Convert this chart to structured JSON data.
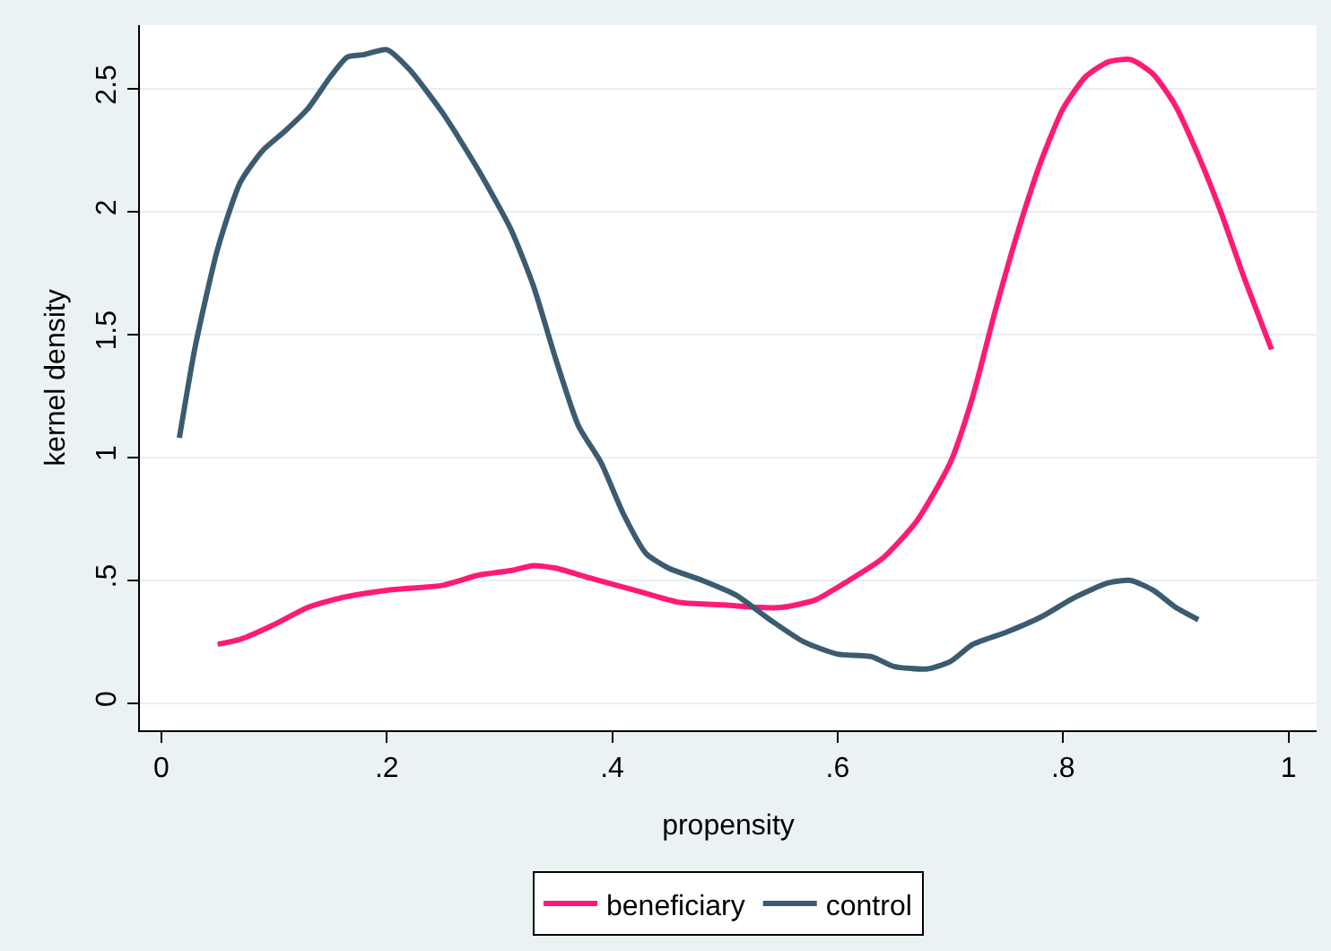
{
  "chart_data": {
    "type": "line",
    "xlabel": "propensity",
    "ylabel": "kernel density",
    "xlim": [
      -0.019,
      1.025
    ],
    "ylim": [
      -0.11,
      2.76
    ],
    "xticks": [
      0,
      {
        "value": 0.2,
        "label": ".2"
      },
      {
        "value": 0.4,
        "label": ".4"
      },
      {
        "value": 0.6,
        "label": ".6"
      },
      {
        "value": 0.8,
        "label": ".8"
      },
      1
    ],
    "yticks": [
      0,
      {
        "value": 0.5,
        "label": ".5"
      },
      1,
      1.5,
      2,
      2.5
    ],
    "grid": "y",
    "legend": "bottom",
    "line_style": "solid",
    "series": [
      {
        "name": "beneficiary",
        "color": "#ff1a75",
        "x": [
          0.05,
          0.07,
          0.1,
          0.13,
          0.16,
          0.2,
          0.25,
          0.28,
          0.31,
          0.33,
          0.35,
          0.38,
          0.42,
          0.46,
          0.5,
          0.53,
          0.55,
          0.58,
          0.61,
          0.64,
          0.67,
          0.7,
          0.72,
          0.74,
          0.76,
          0.78,
          0.8,
          0.82,
          0.84,
          0.86,
          0.88,
          0.9,
          0.92,
          0.94,
          0.96,
          0.985
        ],
        "values": [
          0.24,
          0.26,
          0.32,
          0.39,
          0.43,
          0.46,
          0.48,
          0.52,
          0.54,
          0.56,
          0.55,
          0.51,
          0.46,
          0.41,
          0.4,
          0.39,
          0.39,
          0.42,
          0.5,
          0.59,
          0.74,
          0.98,
          1.25,
          1.6,
          1.92,
          2.2,
          2.42,
          2.55,
          2.61,
          2.62,
          2.56,
          2.43,
          2.23,
          2.0,
          1.74,
          1.44
        ]
      },
      {
        "name": "control",
        "color": "#3b5b70",
        "x": [
          0.016,
          0.03,
          0.05,
          0.07,
          0.09,
          0.11,
          0.13,
          0.15,
          0.165,
          0.18,
          0.2,
          0.22,
          0.25,
          0.28,
          0.31,
          0.33,
          0.35,
          0.37,
          0.39,
          0.41,
          0.43,
          0.45,
          0.48,
          0.51,
          0.54,
          0.57,
          0.6,
          0.63,
          0.65,
          0.68,
          0.7,
          0.72,
          0.75,
          0.78,
          0.81,
          0.84,
          0.86,
          0.88,
          0.9,
          0.92
        ],
        "values": [
          1.08,
          1.45,
          1.85,
          2.12,
          2.25,
          2.33,
          2.42,
          2.55,
          2.63,
          2.64,
          2.66,
          2.58,
          2.4,
          2.18,
          1.93,
          1.7,
          1.4,
          1.13,
          0.98,
          0.77,
          0.61,
          0.55,
          0.5,
          0.44,
          0.34,
          0.25,
          0.2,
          0.19,
          0.15,
          0.14,
          0.17,
          0.24,
          0.29,
          0.35,
          0.43,
          0.49,
          0.5,
          0.46,
          0.39,
          0.34
        ]
      }
    ]
  }
}
